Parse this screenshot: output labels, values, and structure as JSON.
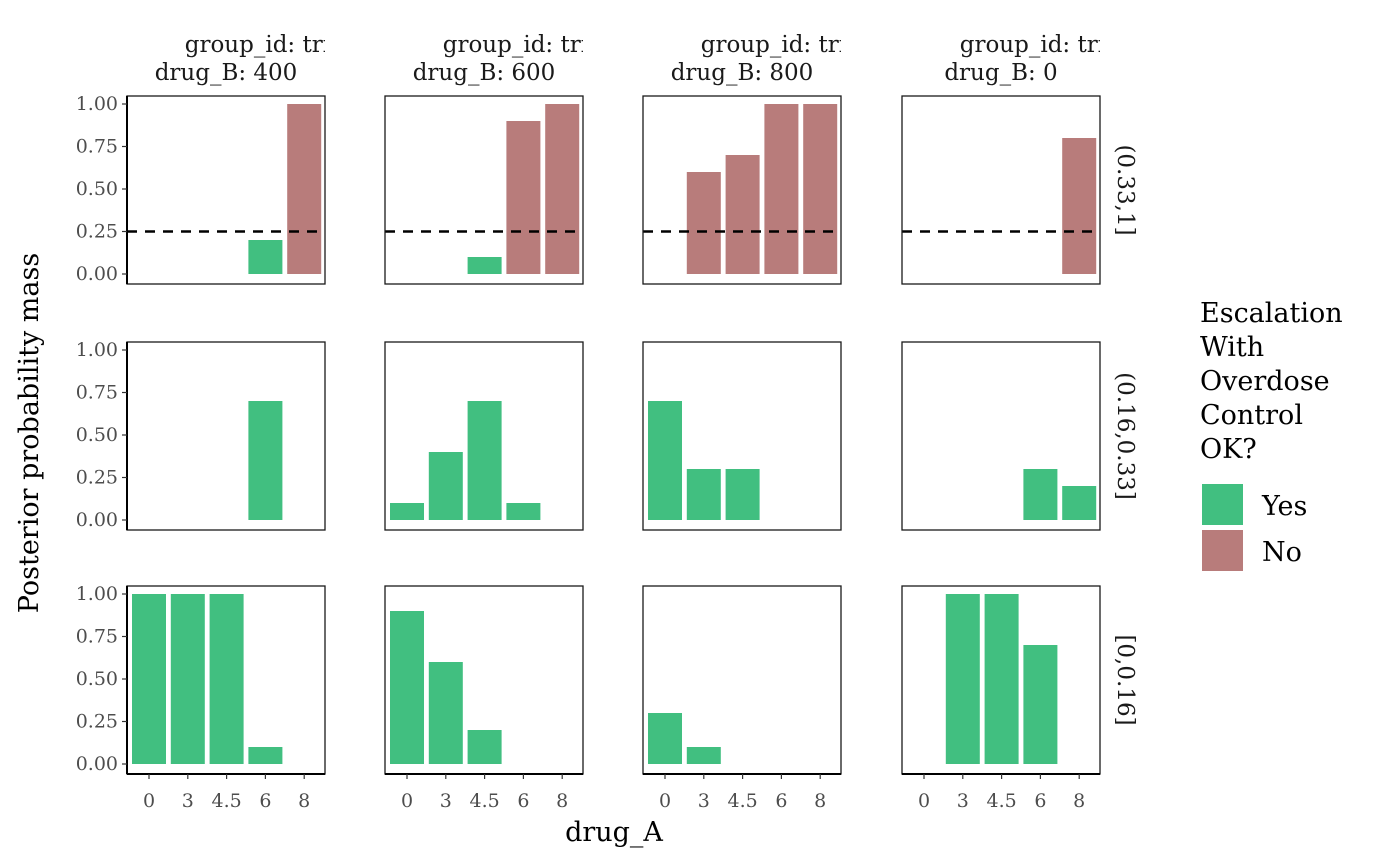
{
  "chart_data": {
    "type": "bar",
    "layout": "facet_grid",
    "xlabel": "drug_A",
    "ylabel": "Posterior probability mass",
    "x_categories": [
      "0",
      "3",
      "4.5",
      "6",
      "8"
    ],
    "y_ticks": [
      "0.00",
      "0.25",
      "0.50",
      "0.75",
      "1.00"
    ],
    "ylim": [
      0,
      1
    ],
    "reference_line": {
      "y": 0.25,
      "style": "dashed",
      "rows": [
        "(0.33,1]"
      ]
    },
    "columns": [
      {
        "group": "group_id: trial_A",
        "drug_B": "drug_B: 400"
      },
      {
        "group": "group_id: trial_A",
        "drug_B": "drug_B: 600"
      },
      {
        "group": "group_id: trial_A",
        "drug_B": "drug_B: 800"
      },
      {
        "group": "group_id: trial_A",
        "drug_B": "drug_B:   0"
      }
    ],
    "rows": [
      "(0.33,1]",
      "(0.16,0.33]",
      "[0,0.16]"
    ],
    "legend": {
      "title": [
        "Escalation",
        "With",
        "Overdose",
        "Control",
        "OK?"
      ],
      "position": "right",
      "entries": [
        {
          "label": "Yes",
          "color": "#41BF80"
        },
        {
          "label": "No",
          "color": "#B87C7B"
        }
      ]
    },
    "panels": [
      [
        [
          {
            "x": "6",
            "y": 0.2,
            "ok": "Yes"
          },
          {
            "x": "8",
            "y": 1.0,
            "ok": "No"
          }
        ],
        [
          {
            "x": "4.5",
            "y": 0.1,
            "ok": "Yes"
          },
          {
            "x": "6",
            "y": 0.9,
            "ok": "No"
          },
          {
            "x": "8",
            "y": 1.0,
            "ok": "No"
          }
        ],
        [
          {
            "x": "3",
            "y": 0.6,
            "ok": "No"
          },
          {
            "x": "4.5",
            "y": 0.7,
            "ok": "No"
          },
          {
            "x": "6",
            "y": 1.0,
            "ok": "No"
          },
          {
            "x": "8",
            "y": 1.0,
            "ok": "No"
          }
        ],
        [
          {
            "x": "8",
            "y": 0.8,
            "ok": "No"
          }
        ]
      ],
      [
        [
          {
            "x": "6",
            "y": 0.7,
            "ok": "Yes"
          }
        ],
        [
          {
            "x": "0",
            "y": 0.1,
            "ok": "Yes"
          },
          {
            "x": "3",
            "y": 0.4,
            "ok": "Yes"
          },
          {
            "x": "4.5",
            "y": 0.7,
            "ok": "Yes"
          },
          {
            "x": "6",
            "y": 0.1,
            "ok": "Yes"
          }
        ],
        [
          {
            "x": "0",
            "y": 0.7,
            "ok": "Yes"
          },
          {
            "x": "3",
            "y": 0.3,
            "ok": "Yes"
          },
          {
            "x": "4.5",
            "y": 0.3,
            "ok": "Yes"
          }
        ],
        [
          {
            "x": "6",
            "y": 0.3,
            "ok": "Yes"
          },
          {
            "x": "8",
            "y": 0.2,
            "ok": "Yes"
          }
        ]
      ],
      [
        [
          {
            "x": "0",
            "y": 1.0,
            "ok": "Yes"
          },
          {
            "x": "3",
            "y": 1.0,
            "ok": "Yes"
          },
          {
            "x": "4.5",
            "y": 1.0,
            "ok": "Yes"
          },
          {
            "x": "6",
            "y": 0.1,
            "ok": "Yes"
          }
        ],
        [
          {
            "x": "0",
            "y": 0.9,
            "ok": "Yes"
          },
          {
            "x": "3",
            "y": 0.6,
            "ok": "Yes"
          },
          {
            "x": "4.5",
            "y": 0.2,
            "ok": "Yes"
          }
        ],
        [
          {
            "x": "0",
            "y": 0.3,
            "ok": "Yes"
          },
          {
            "x": "3",
            "y": 0.1,
            "ok": "Yes"
          }
        ],
        [
          {
            "x": "3",
            "y": 1.0,
            "ok": "Yes"
          },
          {
            "x": "4.5",
            "y": 1.0,
            "ok": "Yes"
          },
          {
            "x": "6",
            "y": 0.7,
            "ok": "Yes"
          }
        ]
      ]
    ]
  }
}
